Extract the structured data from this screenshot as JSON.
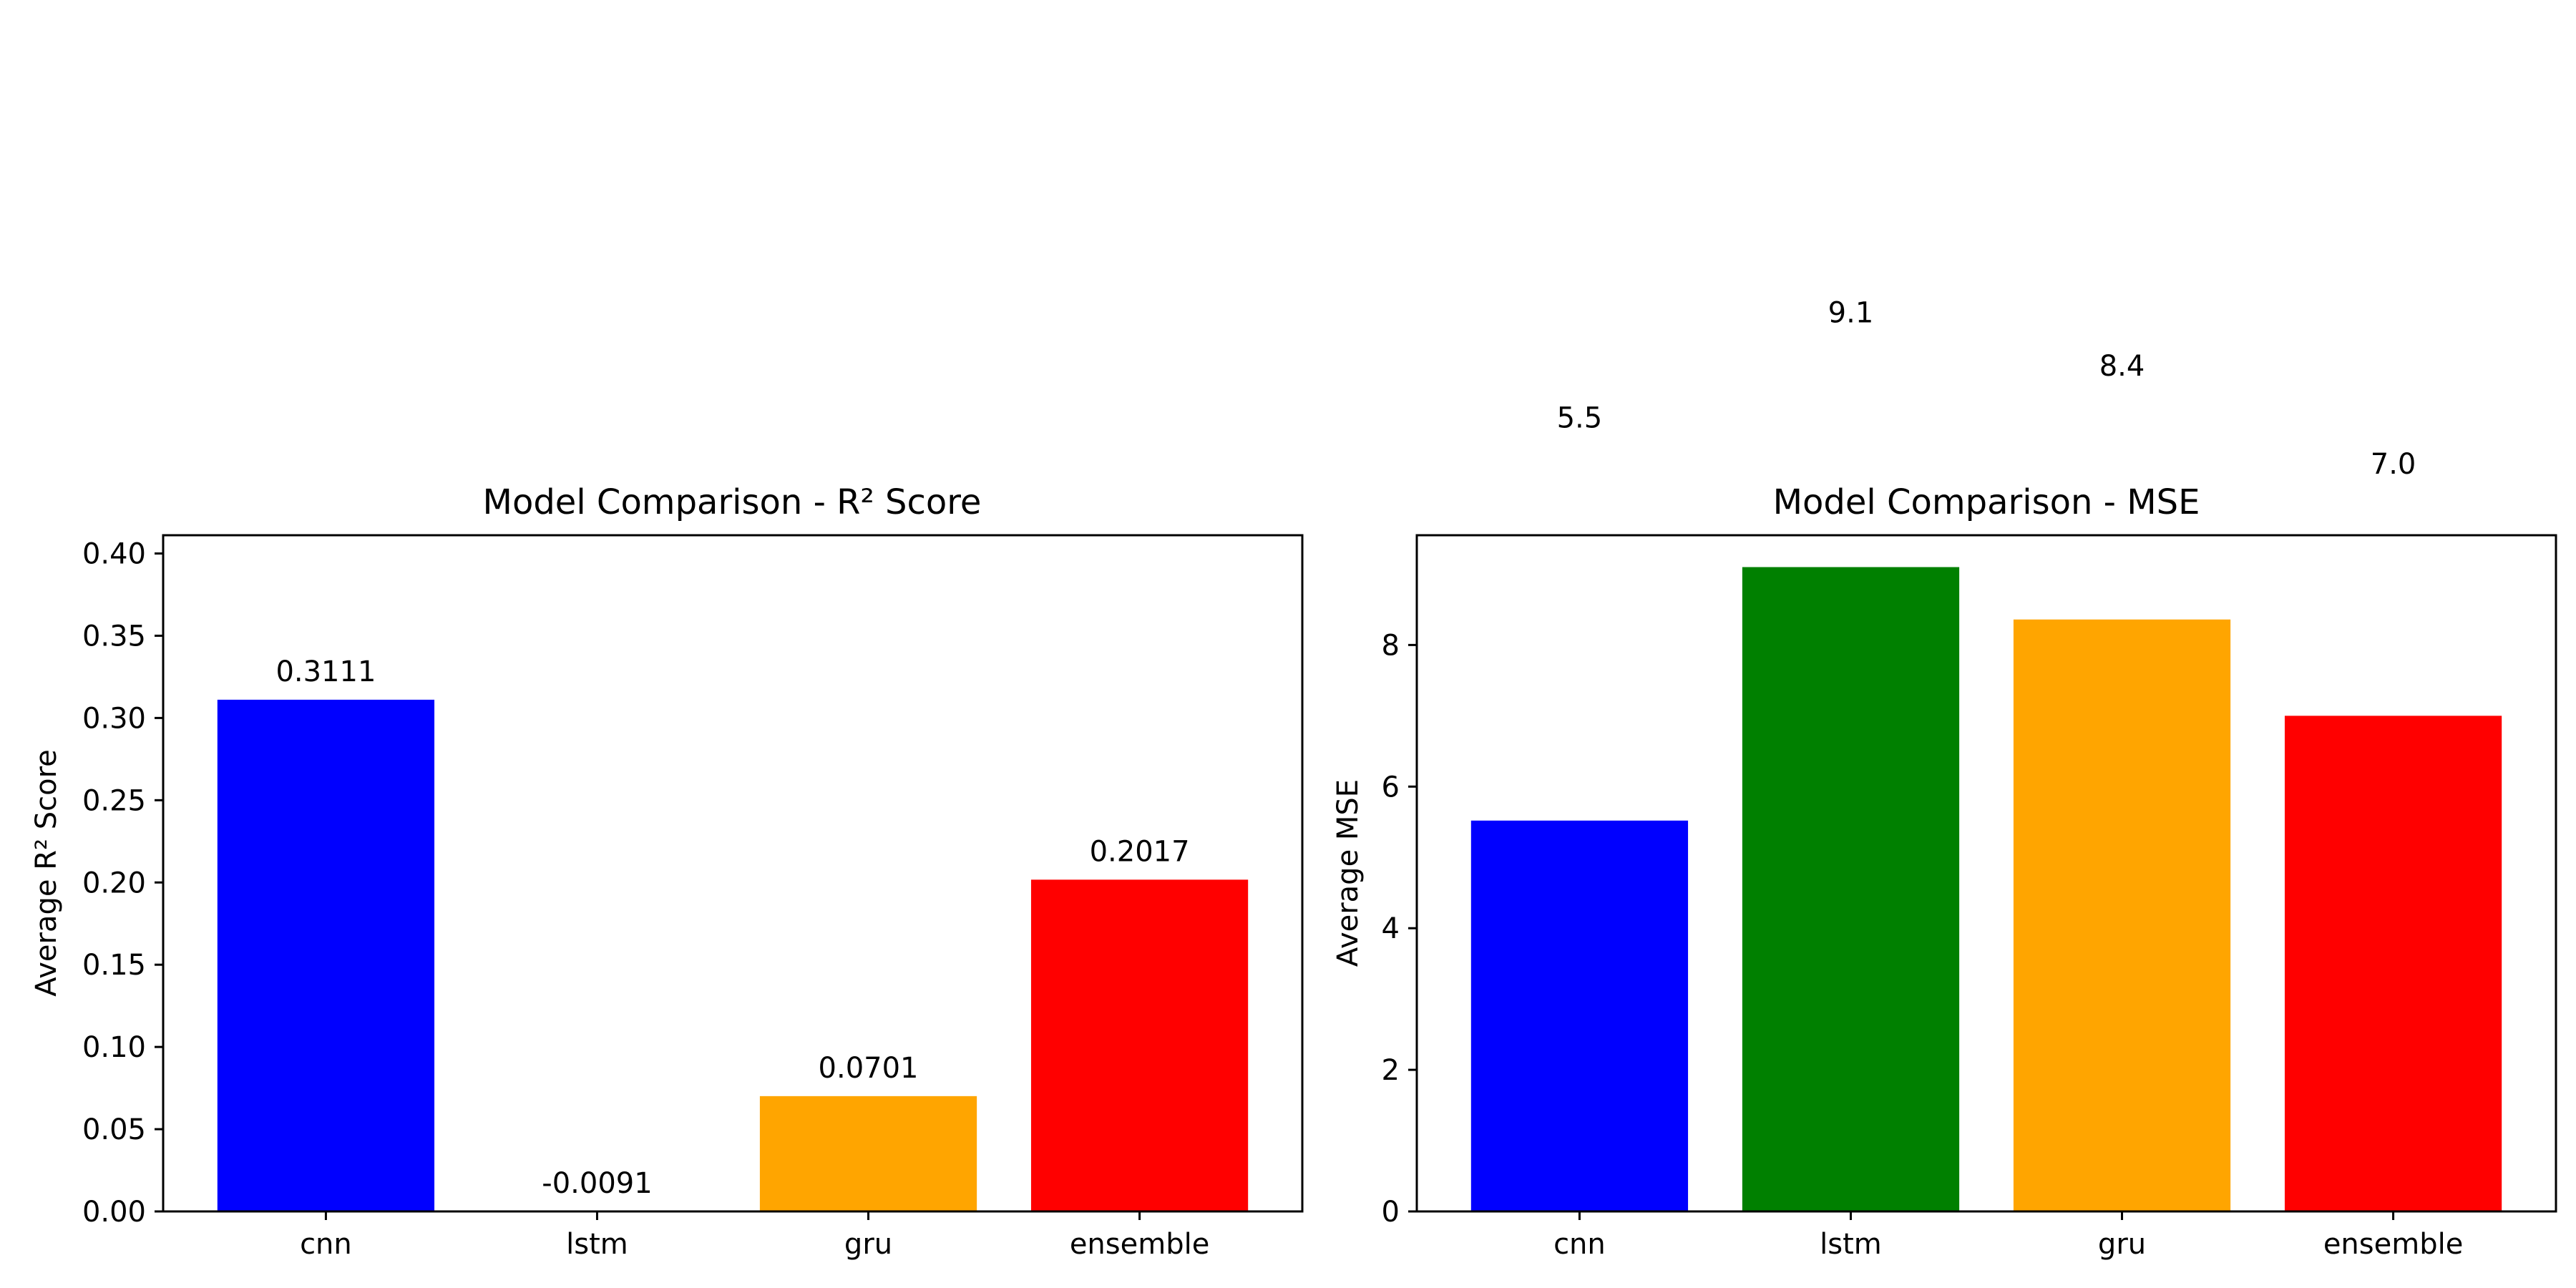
{
  "chart_data": [
    {
      "type": "bar",
      "title": "Model Comparison - R² Score",
      "xlabel": "",
      "ylabel": "Average R² Score",
      "categories": [
        "cnn",
        "lstm",
        "gru",
        "ensemble"
      ],
      "values": [
        0.3111,
        -0.0091,
        0.0701,
        0.2017
      ],
      "value_labels": [
        "0.3111",
        "-0.0091",
        "0.0701",
        "0.2017"
      ],
      "colors": [
        "#0000ff",
        "#008000",
        "#ffa500",
        "#ff0000"
      ],
      "ylim": [
        0,
        0.4111
      ],
      "yticks": [
        0.0,
        0.05,
        0.1,
        0.15,
        0.2,
        0.25,
        0.3,
        0.35,
        0.4
      ],
      "ytick_labels": [
        "0.00",
        "0.05",
        "0.10",
        "0.15",
        "0.20",
        "0.25",
        "0.30",
        "0.35",
        "0.40"
      ],
      "grid": false,
      "legend": false
    },
    {
      "type": "bar",
      "title": "Model Comparison - MSE",
      "xlabel": "",
      "ylabel": "Average MSE",
      "categories": [
        "cnn",
        "lstm",
        "gru",
        "ensemble"
      ],
      "values": [
        5.52,
        9.1,
        8.36,
        7.0
      ],
      "value_labels": [
        "5.5",
        "9.1",
        "8.4",
        "7.0"
      ],
      "label_y": [
        10.95,
        12.435,
        11.68,
        10.3
      ],
      "colors": [
        "#0000ff",
        "#008000",
        "#ffa500",
        "#ff0000"
      ],
      "ylim": [
        0,
        9.55
      ],
      "yticks": [
        0,
        2,
        4,
        6,
        8
      ],
      "ytick_labels": [
        "0",
        "2",
        "4",
        "6",
        "8"
      ],
      "grid": false,
      "legend": false
    }
  ]
}
